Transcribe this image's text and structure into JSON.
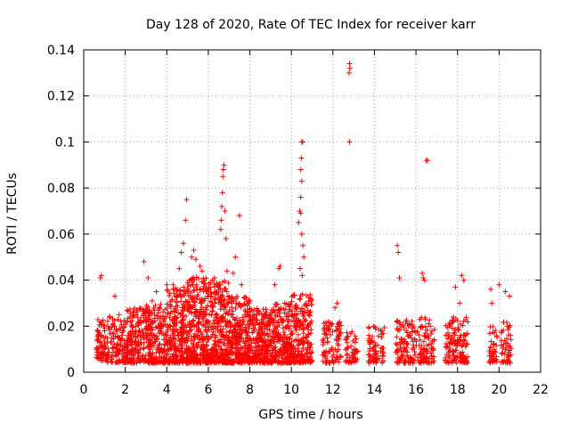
{
  "chart_data": {
    "type": "scatter",
    "title": "Day 128 of 2020, Rate Of TEC Index for receiver karr",
    "xlabel": "GPS time / hours",
    "ylabel": "ROTI / TECUs",
    "xlim": [
      0,
      22
    ],
    "ylim": [
      0,
      0.14
    ],
    "x_ticks": [
      0,
      2,
      4,
      6,
      8,
      10,
      12,
      14,
      16,
      18,
      20,
      22
    ],
    "y_ticks": [
      0,
      0.02,
      0.04,
      0.06,
      0.08,
      0.1,
      0.12,
      0.14
    ],
    "y_tick_labels": [
      "0",
      "0.02",
      "0.04",
      "0.06",
      "0.08",
      "0.1",
      "0.12",
      "0.14"
    ],
    "grid": true,
    "marker": "+",
    "color": "#ff0000",
    "clusters": [
      {
        "x_start": 0.6,
        "x_end": 1.1,
        "n": 70,
        "ymin": 0.005,
        "ymax": 0.023
      },
      {
        "x_start": 1.1,
        "x_end": 2.0,
        "n": 110,
        "ymin": 0.004,
        "ymax": 0.025
      },
      {
        "x_start": 2.0,
        "x_end": 3.0,
        "n": 180,
        "ymin": 0.004,
        "ymax": 0.028
      },
      {
        "x_start": 3.0,
        "x_end": 4.0,
        "n": 200,
        "ymin": 0.004,
        "ymax": 0.03
      },
      {
        "x_start": 4.0,
        "x_end": 5.0,
        "n": 260,
        "ymin": 0.004,
        "ymax": 0.037
      },
      {
        "x_start": 5.0,
        "x_end": 6.0,
        "n": 300,
        "ymin": 0.004,
        "ymax": 0.042
      },
      {
        "x_start": 6.0,
        "x_end": 7.0,
        "n": 280,
        "ymin": 0.004,
        "ymax": 0.04
      },
      {
        "x_start": 7.0,
        "x_end": 8.0,
        "n": 260,
        "ymin": 0.004,
        "ymax": 0.033
      },
      {
        "x_start": 8.0,
        "x_end": 9.0,
        "n": 240,
        "ymin": 0.004,
        "ymax": 0.028
      },
      {
        "x_start": 9.0,
        "x_end": 10.0,
        "n": 240,
        "ymin": 0.004,
        "ymax": 0.03
      },
      {
        "x_start": 10.0,
        "x_end": 11.0,
        "n": 220,
        "ymin": 0.004,
        "ymax": 0.034
      },
      {
        "x_start": 11.5,
        "x_end": 12.4,
        "n": 90,
        "ymin": 0.004,
        "ymax": 0.022
      },
      {
        "x_start": 12.6,
        "x_end": 13.2,
        "n": 50,
        "ymin": 0.004,
        "ymax": 0.018
      },
      {
        "x_start": 13.7,
        "x_end": 14.5,
        "n": 70,
        "ymin": 0.004,
        "ymax": 0.02
      },
      {
        "x_start": 15.0,
        "x_end": 16.1,
        "n": 110,
        "ymin": 0.004,
        "ymax": 0.023
      },
      {
        "x_start": 16.1,
        "x_end": 16.9,
        "n": 90,
        "ymin": 0.004,
        "ymax": 0.025
      },
      {
        "x_start": 17.4,
        "x_end": 18.5,
        "n": 130,
        "ymin": 0.004,
        "ymax": 0.024
      },
      {
        "x_start": 19.5,
        "x_end": 19.9,
        "n": 40,
        "ymin": 0.004,
        "ymax": 0.02
      },
      {
        "x_start": 20.1,
        "x_end": 20.6,
        "n": 50,
        "ymin": 0.004,
        "ymax": 0.022
      }
    ],
    "outliers": [
      [
        0.8,
        0.041
      ],
      [
        0.85,
        0.042
      ],
      [
        1.5,
        0.033
      ],
      [
        1.7,
        0.025
      ],
      [
        2.9,
        0.048
      ],
      [
        3.1,
        0.041
      ],
      [
        3.5,
        0.035
      ],
      [
        3.3,
        0.031
      ],
      [
        4.0,
        0.038
      ],
      [
        4.3,
        0.038
      ],
      [
        4.6,
        0.045
      ],
      [
        4.7,
        0.052
      ],
      [
        4.8,
        0.056
      ],
      [
        4.9,
        0.066
      ],
      [
        4.95,
        0.075
      ],
      [
        5.2,
        0.05
      ],
      [
        5.3,
        0.053
      ],
      [
        5.4,
        0.049
      ],
      [
        5.6,
        0.046
      ],
      [
        5.7,
        0.044
      ],
      [
        6.2,
        0.04
      ],
      [
        6.3,
        0.041
      ],
      [
        6.6,
        0.062
      ],
      [
        6.62,
        0.066
      ],
      [
        6.65,
        0.072
      ],
      [
        6.68,
        0.078
      ],
      [
        6.7,
        0.085
      ],
      [
        6.72,
        0.088
      ],
      [
        6.75,
        0.09
      ],
      [
        6.8,
        0.07
      ],
      [
        6.85,
        0.058
      ],
      [
        6.9,
        0.044
      ],
      [
        7.2,
        0.043
      ],
      [
        7.3,
        0.05
      ],
      [
        7.5,
        0.068
      ],
      [
        7.6,
        0.038
      ],
      [
        9.2,
        0.038
      ],
      [
        9.4,
        0.045
      ],
      [
        9.45,
        0.046
      ],
      [
        10.35,
        0.065
      ],
      [
        10.4,
        0.07
      ],
      [
        10.45,
        0.069
      ],
      [
        10.5,
        0.06
      ],
      [
        10.55,
        0.055
      ],
      [
        10.6,
        0.05
      ],
      [
        10.42,
        0.045
      ],
      [
        10.52,
        0.042
      ],
      [
        10.45,
        0.076
      ],
      [
        10.5,
        0.083
      ],
      [
        10.45,
        0.088
      ],
      [
        10.48,
        0.093
      ],
      [
        10.5,
        0.1
      ],
      [
        10.55,
        0.1
      ],
      [
        12.8,
        0.134
      ],
      [
        12.82,
        0.132
      ],
      [
        12.78,
        0.13
      ],
      [
        12.8,
        0.1
      ],
      [
        12.1,
        0.028
      ],
      [
        12.2,
        0.03
      ],
      [
        15.1,
        0.055
      ],
      [
        15.15,
        0.052
      ],
      [
        15.2,
        0.041
      ],
      [
        16.3,
        0.043
      ],
      [
        16.35,
        0.041
      ],
      [
        16.4,
        0.04
      ],
      [
        16.5,
        0.092
      ],
      [
        16.55,
        0.092
      ],
      [
        17.9,
        0.037
      ],
      [
        18.2,
        0.042
      ],
      [
        18.3,
        0.04
      ],
      [
        18.1,
        0.03
      ],
      [
        19.6,
        0.036
      ],
      [
        19.65,
        0.03
      ],
      [
        20.0,
        0.038
      ],
      [
        20.3,
        0.035
      ],
      [
        20.5,
        0.033
      ]
    ]
  }
}
